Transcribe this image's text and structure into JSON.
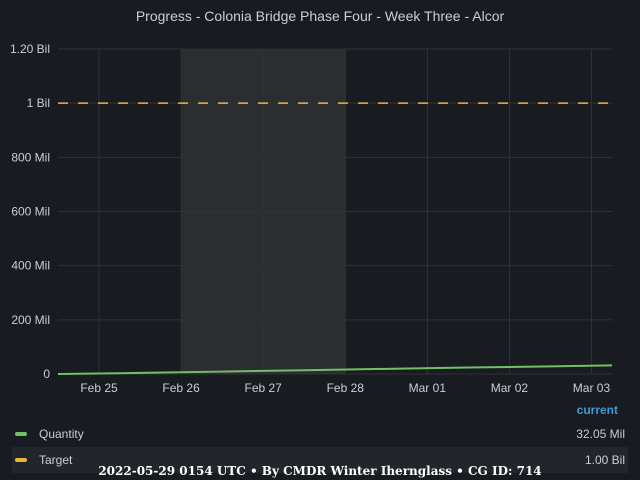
{
  "title": "Progress - Colonia Bridge Phase Four - Week Three - Alcor",
  "footer": "2022-05-29 0154 UTC • By CMDR Winter Iherngl‌ass • CG ID: 714",
  "legend": {
    "header": "current",
    "items": [
      {
        "name": "Quantity",
        "value": "32.05 Mil"
      },
      {
        "name": "Target",
        "value": "1.00 Bil"
      }
    ]
  },
  "colors": {
    "quantity": "#73bf69",
    "target": "#eab839",
    "grid": "#2f3237",
    "highlight": "#2b2d31"
  },
  "chart_data": {
    "type": "line",
    "x_tick_labels": [
      "Feb 25",
      "Feb 26",
      "Feb 27",
      "Feb 28",
      "Mar 01",
      "Mar 02",
      "Mar 03"
    ],
    "y_tick_labels": [
      "0",
      "200 Mil",
      "400 Mil",
      "600 Mil",
      "800 Mil",
      "1 Bil",
      "1.20 Bil"
    ],
    "y_tick_values": [
      0,
      200000000,
      400000000,
      600000000,
      800000000,
      1000000000,
      1200000000
    ],
    "ylim": [
      0,
      1200000000
    ],
    "xlim": [
      "2022-02-24 12:00",
      "2022-03-03 06:00"
    ],
    "highlight_range": [
      "2022-02-26",
      "2022-02-28"
    ],
    "series": [
      {
        "name": "Quantity",
        "x": [
          "2022-02-24 12:00",
          "2022-02-25 12:00",
          "2022-02-26 12:00",
          "2022-02-27 12:00",
          "2022-02-28 12:00",
          "2022-03-01 12:00",
          "2022-03-02 12:00",
          "2022-03-03 06:00"
        ],
        "values": [
          0,
          4000000,
          9000000,
          14000000,
          19000000,
          24000000,
          28000000,
          32050000
        ]
      },
      {
        "name": "Target",
        "x": [
          "2022-02-24 12:00",
          "2022-03-03 06:00"
        ],
        "values": [
          1000000000,
          1000000000
        ]
      }
    ]
  }
}
